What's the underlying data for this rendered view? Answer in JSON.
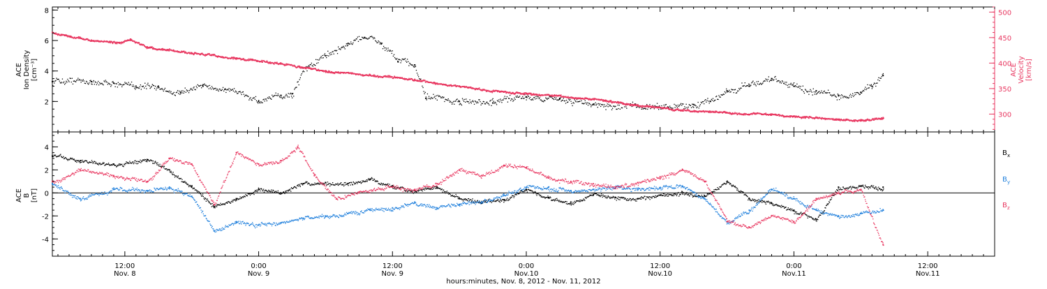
{
  "colors": {
    "black": "#000000",
    "red": "#e8365f",
    "blue": "#1e7fdc"
  },
  "time_axis": {
    "xlim": [
      "2012-11-08T05:30",
      "2012-11-11T18:00"
    ],
    "title": "hours:minutes, Nov.  8, 2012 - Nov. 11, 2012",
    "ticks": [
      {
        "time": "2012-11-08T12:00",
        "hour": "12:00",
        "date": "Nov. 8"
      },
      {
        "time": "2012-11-09T00:00",
        "hour": "0:00",
        "date": "Nov. 9"
      },
      {
        "time": "2012-11-09T12:00",
        "hour": "12:00",
        "date": "Nov. 9"
      },
      {
        "time": "2012-11-10T00:00",
        "hour": "0:00",
        "date": "Nov.10"
      },
      {
        "time": "2012-11-10T12:00",
        "hour": "12:00",
        "date": "Nov.10"
      },
      {
        "time": "2012-11-11T00:00",
        "hour": "0:00",
        "date": "Nov.11"
      },
      {
        "time": "2012-11-11T12:00",
        "hour": "12:00",
        "date": "Nov.11"
      }
    ]
  },
  "chart_data": [
    {
      "type": "scatter",
      "panel": "top",
      "ylabel_left": [
        "ACE",
        "Ion Density"
      ],
      "ylabel_left_unit": "[cm⁻³]",
      "ylabel_right": [
        "ACE",
        "Velocity"
      ],
      "ylabel_right_unit": "[km/s]",
      "ylim_left": [
        0,
        8.2
      ],
      "yticks_left": [
        2,
        4,
        6,
        8
      ],
      "ylim_right": [
        265,
        510
      ],
      "yticks_right": [
        300,
        350,
        400,
        450,
        500
      ],
      "series": [
        {
          "axis": "left",
          "color": "black",
          "points": [
            [
              "2012-11-08T05:30",
              3.3
            ],
            [
              "2012-11-08T09:00",
              3.3
            ],
            [
              "2012-11-08T11:00",
              3.2
            ],
            [
              "2012-11-08T13:00",
              3.0
            ],
            [
              "2012-11-08T15:00",
              3.0
            ],
            [
              "2012-11-08T17:00",
              2.6
            ],
            [
              "2012-11-08T19:00",
              3.0
            ],
            [
              "2012-11-08T21:00",
              2.8
            ],
            [
              "2012-11-09T00:00",
              2.0
            ],
            [
              "2012-11-09T02:00",
              2.4
            ],
            [
              "2012-11-09T03:00",
              2.5
            ],
            [
              "2012-11-09T04:00",
              4.2
            ],
            [
              "2012-11-09T06:00",
              5.0
            ],
            [
              "2012-11-09T08:00",
              5.8
            ],
            [
              "2012-11-09T09:30",
              6.2
            ],
            [
              "2012-11-09T11:00",
              5.8
            ],
            [
              "2012-11-09T12:30",
              4.6
            ],
            [
              "2012-11-09T14:00",
              4.4
            ],
            [
              "2012-11-09T15:00",
              2.2
            ],
            [
              "2012-11-09T18:00",
              2.0
            ],
            [
              "2012-11-09T21:00",
              1.9
            ],
            [
              "2012-11-10T00:00",
              2.3
            ],
            [
              "2012-11-10T03:00",
              2.2
            ],
            [
              "2012-11-10T06:00",
              1.8
            ],
            [
              "2012-11-10T09:00",
              1.8
            ],
            [
              "2012-11-10T12:00",
              1.6
            ],
            [
              "2012-11-10T15:00",
              1.8
            ],
            [
              "2012-11-10T16:30",
              2.0
            ],
            [
              "2012-11-10T18:00",
              2.7
            ],
            [
              "2012-11-10T20:00",
              3.0
            ],
            [
              "2012-11-10T22:00",
              3.5
            ],
            [
              "2012-11-11T00:00",
              3.0
            ],
            [
              "2012-11-11T02:00",
              2.7
            ],
            [
              "2012-11-11T04:00",
              2.4
            ],
            [
              "2012-11-11T06:00",
              2.6
            ],
            [
              "2012-11-11T07:00",
              3.0
            ],
            [
              "2012-11-11T08:00",
              3.7
            ]
          ]
        },
        {
          "axis": "right",
          "color": "red",
          "points": [
            [
              "2012-11-08T05:30",
              460
            ],
            [
              "2012-11-08T09:00",
              445
            ],
            [
              "2012-11-08T11:30",
              440
            ],
            [
              "2012-11-08T12:30",
              447
            ],
            [
              "2012-11-08T14:00",
              432
            ],
            [
              "2012-11-08T18:00",
              420
            ],
            [
              "2012-11-08T22:00",
              410
            ],
            [
              "2012-11-09T02:00",
              400
            ],
            [
              "2012-11-09T06:00",
              385
            ],
            [
              "2012-11-09T10:00",
              377
            ],
            [
              "2012-11-09T14:00",
              368
            ],
            [
              "2012-11-09T18:00",
              355
            ],
            [
              "2012-11-09T22:00",
              343
            ],
            [
              "2012-11-10T02:00",
              338
            ],
            [
              "2012-11-10T06:00",
              330
            ],
            [
              "2012-11-10T10:00",
              318
            ],
            [
              "2012-11-10T14:00",
              308
            ],
            [
              "2012-11-10T18:00",
              303
            ],
            [
              "2012-11-10T22:00",
              300
            ],
            [
              "2012-11-11T01:00",
              295
            ],
            [
              "2012-11-11T04:00",
              290
            ],
            [
              "2012-11-11T06:00",
              289
            ],
            [
              "2012-11-11T08:00",
              293
            ]
          ]
        }
      ]
    },
    {
      "type": "scatter",
      "panel": "bottom",
      "ylabel_left": [
        "ACE",
        "B"
      ],
      "ylabel_left_unit": "[nT]",
      "ylim": [
        -5.5,
        5.3
      ],
      "yticks": [
        -4,
        -2,
        0,
        2,
        4
      ],
      "zero_line": true,
      "legend": "right",
      "series": [
        {
          "name": "B",
          "sub": "x",
          "color": "black",
          "points": [
            [
              "2012-11-08T05:30",
              3.2
            ],
            [
              "2012-11-08T08:00",
              2.8
            ],
            [
              "2012-11-08T11:00",
              2.5
            ],
            [
              "2012-11-08T14:00",
              2.9
            ],
            [
              "2012-11-08T16:00",
              2.0
            ],
            [
              "2012-11-08T18:00",
              0.5
            ],
            [
              "2012-11-08T20:00",
              -1.2
            ],
            [
              "2012-11-08T22:00",
              -0.5
            ],
            [
              "2012-11-09T00:00",
              0.3
            ],
            [
              "2012-11-09T02:00",
              0.0
            ],
            [
              "2012-11-09T04:00",
              0.8
            ],
            [
              "2012-11-09T06:00",
              0.9
            ],
            [
              "2012-11-09T08:00",
              0.8
            ],
            [
              "2012-11-09T10:00",
              1.2
            ],
            [
              "2012-11-09T12:00",
              0.6
            ],
            [
              "2012-11-09T14:00",
              0.2
            ],
            [
              "2012-11-09T16:00",
              0.5
            ],
            [
              "2012-11-09T18:00",
              -0.5
            ],
            [
              "2012-11-09T20:00",
              -0.9
            ],
            [
              "2012-11-09T22:00",
              -0.6
            ],
            [
              "2012-11-10T00:00",
              0.3
            ],
            [
              "2012-11-10T02:00",
              -0.4
            ],
            [
              "2012-11-10T04:00",
              -0.8
            ],
            [
              "2012-11-10T06:00",
              -0.2
            ],
            [
              "2012-11-10T08:00",
              -0.4
            ],
            [
              "2012-11-10T10:00",
              -0.5
            ],
            [
              "2012-11-10T12:00",
              -0.2
            ],
            [
              "2012-11-10T14:00",
              0.0
            ],
            [
              "2012-11-10T16:00",
              -0.3
            ],
            [
              "2012-11-10T18:00",
              1.0
            ],
            [
              "2012-11-10T20:00",
              -0.5
            ],
            [
              "2012-11-10T22:00",
              -0.9
            ],
            [
              "2012-11-11T00:00",
              -1.5
            ],
            [
              "2012-11-11T02:00",
              -2.3
            ],
            [
              "2012-11-11T04:00",
              0.5
            ],
            [
              "2012-11-11T06:00",
              0.6
            ],
            [
              "2012-11-11T08:00",
              0.5
            ]
          ]
        },
        {
          "name": "B",
          "sub": "y",
          "color": "blue",
          "points": [
            [
              "2012-11-08T05:30",
              0.8
            ],
            [
              "2012-11-08T08:00",
              -0.5
            ],
            [
              "2012-11-08T11:00",
              0.3
            ],
            [
              "2012-11-08T14:00",
              0.2
            ],
            [
              "2012-11-08T16:00",
              0.5
            ],
            [
              "2012-11-08T18:00",
              -0.3
            ],
            [
              "2012-11-08T20:00",
              -3.3
            ],
            [
              "2012-11-08T22:00",
              -2.5
            ],
            [
              "2012-11-09T00:00",
              -2.8
            ],
            [
              "2012-11-09T02:00",
              -2.6
            ],
            [
              "2012-11-09T04:00",
              -2.2
            ],
            [
              "2012-11-09T06:00",
              -2.0
            ],
            [
              "2012-11-09T08:00",
              -1.8
            ],
            [
              "2012-11-09T10:00",
              -1.5
            ],
            [
              "2012-11-09T12:00",
              -1.3
            ],
            [
              "2012-11-09T14:00",
              -0.8
            ],
            [
              "2012-11-09T16:00",
              -1.3
            ],
            [
              "2012-11-09T18:00",
              -1.0
            ],
            [
              "2012-11-09T20:00",
              -0.8
            ],
            [
              "2012-11-09T22:00",
              -0.2
            ],
            [
              "2012-11-10T00:00",
              0.5
            ],
            [
              "2012-11-10T02:00",
              0.5
            ],
            [
              "2012-11-10T04:00",
              0.2
            ],
            [
              "2012-11-10T06:00",
              0.3
            ],
            [
              "2012-11-10T08:00",
              0.4
            ],
            [
              "2012-11-10T10:00",
              0.3
            ],
            [
              "2012-11-10T12:00",
              0.4
            ],
            [
              "2012-11-10T14:00",
              0.6
            ],
            [
              "2012-11-10T16:00",
              -0.5
            ],
            [
              "2012-11-10T18:00",
              -2.5
            ],
            [
              "2012-11-10T20:00",
              -1.5
            ],
            [
              "2012-11-10T22:00",
              0.3
            ],
            [
              "2012-11-11T00:00",
              -0.5
            ],
            [
              "2012-11-11T02:00",
              -1.5
            ],
            [
              "2012-11-11T04:00",
              -2.0
            ],
            [
              "2012-11-11T06:00",
              -1.8
            ],
            [
              "2012-11-11T08:00",
              -1.5
            ]
          ]
        },
        {
          "name": "B",
          "sub": "z",
          "color": "red",
          "points": [
            [
              "2012-11-08T05:30",
              1.0
            ],
            [
              "2012-11-08T08:00",
              2.0
            ],
            [
              "2012-11-08T11:00",
              1.5
            ],
            [
              "2012-11-08T14:00",
              1.0
            ],
            [
              "2012-11-08T16:00",
              3.0
            ],
            [
              "2012-11-08T18:00",
              2.5
            ],
            [
              "2012-11-08T20:00",
              -1.0
            ],
            [
              "2012-11-08T22:00",
              3.5
            ],
            [
              "2012-11-09T00:00",
              2.5
            ],
            [
              "2012-11-09T02:00",
              2.8
            ],
            [
              "2012-11-09T03:30",
              4.0
            ],
            [
              "2012-11-09T05:00",
              1.5
            ],
            [
              "2012-11-09T07:00",
              -0.5
            ],
            [
              "2012-11-09T09:00",
              0.0
            ],
            [
              "2012-11-09T12:00",
              0.5
            ],
            [
              "2012-11-09T14:00",
              0.3
            ],
            [
              "2012-11-09T16:00",
              0.8
            ],
            [
              "2012-11-09T18:00",
              2.0
            ],
            [
              "2012-11-09T20:00",
              1.5
            ],
            [
              "2012-11-09T22:00",
              2.4
            ],
            [
              "2012-11-10T00:00",
              2.2
            ],
            [
              "2012-11-10T02:00",
              1.3
            ],
            [
              "2012-11-10T04:00",
              1.0
            ],
            [
              "2012-11-10T06:00",
              0.8
            ],
            [
              "2012-11-10T08:00",
              0.5
            ],
            [
              "2012-11-10T10:00",
              0.9
            ],
            [
              "2012-11-10T12:00",
              1.4
            ],
            [
              "2012-11-10T14:00",
              2.0
            ],
            [
              "2012-11-10T16:00",
              1.0
            ],
            [
              "2012-11-10T18:00",
              -2.5
            ],
            [
              "2012-11-10T20:00",
              -3.0
            ],
            [
              "2012-11-10T22:00",
              -2.0
            ],
            [
              "2012-11-11T00:00",
              -2.5
            ],
            [
              "2012-11-11T02:00",
              -0.5
            ],
            [
              "2012-11-11T04:00",
              0.0
            ],
            [
              "2012-11-11T06:00",
              0.3
            ],
            [
              "2012-11-11T08:00",
              -4.5
            ]
          ]
        }
      ]
    }
  ]
}
